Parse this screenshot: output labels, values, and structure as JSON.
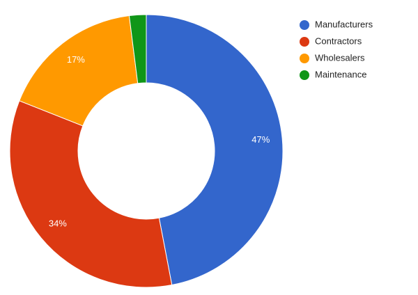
{
  "chart_data": {
    "type": "donut",
    "categories": [
      "Manufacturers",
      "Contractors",
      "Wholesalers",
      "Maintenance"
    ],
    "values": [
      47,
      34,
      17,
      2
    ],
    "value_labels": [
      "47%",
      "34%",
      "17%",
      null
    ],
    "colors": [
      "#3366cc",
      "#dc3912",
      "#ff9900",
      "#109618"
    ],
    "legend": "right"
  }
}
